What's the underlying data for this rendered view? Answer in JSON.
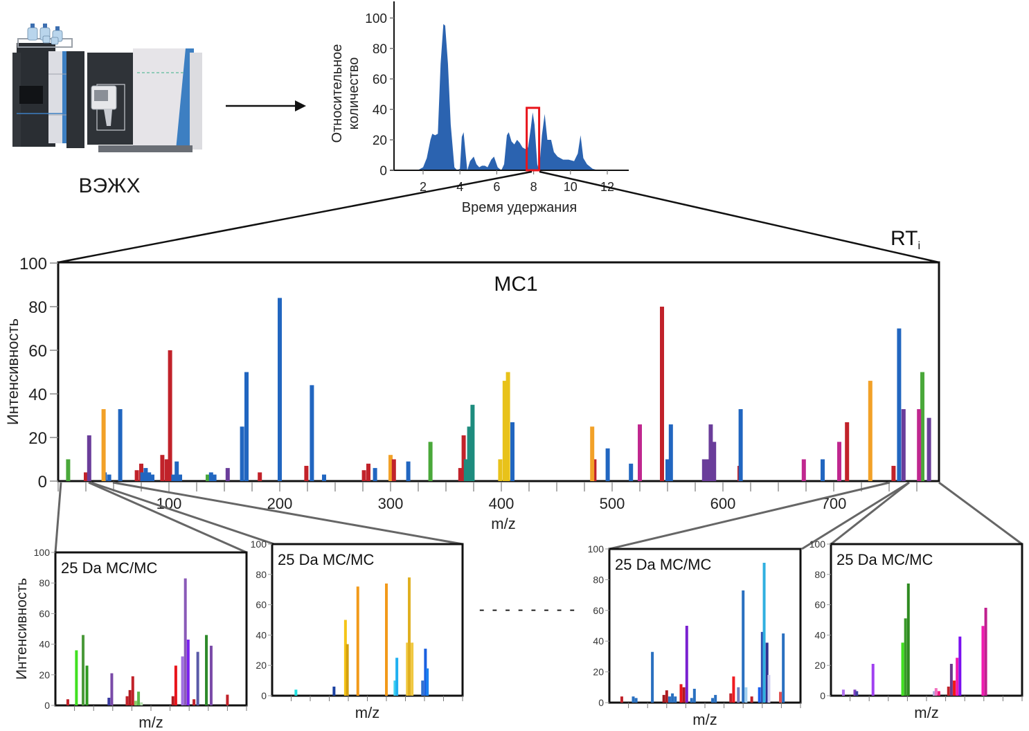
{
  "instrument": {
    "label": "ВЭЖХ",
    "icon": "lc-ms-instrument-icon"
  },
  "flow_arrow": "right-arrow-icon",
  "chart_data": [
    {
      "id": "chromatogram",
      "type": "area",
      "title": "",
      "xlabel": "Время удержания",
      "ylabel_lines": [
        "Относительное",
        "количество"
      ],
      "xlim": [
        0.3,
        13
      ],
      "ylim": [
        0,
        105
      ],
      "xticks": [
        2,
        4,
        6,
        8,
        10,
        12
      ],
      "yticks": [
        0,
        20,
        40,
        60,
        80,
        100
      ],
      "grid": false,
      "color": "#2b63b0",
      "highlight": {
        "x_range": [
          7.7,
          8.3
        ],
        "color": "#e8141b",
        "label_ref": "RTi"
      },
      "x": [
        1.7,
        2.0,
        2.2,
        2.4,
        2.5,
        2.65,
        2.8,
        2.95,
        3.1,
        3.2,
        3.35,
        3.5,
        3.7,
        3.85,
        4.0,
        4.1,
        4.2,
        4.3,
        4.4,
        4.55,
        4.75,
        4.9,
        5.05,
        5.2,
        5.35,
        5.5,
        5.7,
        5.85,
        6.05,
        6.25,
        6.4,
        6.55,
        6.65,
        6.8,
        6.95,
        7.1,
        7.25,
        7.4,
        7.55,
        7.7,
        7.85,
        7.95,
        8.05,
        8.2,
        8.3,
        8.45,
        8.6,
        8.75,
        8.95,
        9.1,
        9.3,
        9.6,
        9.9,
        10.2,
        10.4,
        10.55,
        10.7,
        10.9,
        11.2,
        11.5,
        12.9
      ],
      "y": [
        0,
        2,
        8,
        20,
        24,
        23,
        24,
        70,
        96,
        95,
        70,
        30,
        2,
        0,
        1,
        22,
        25,
        12,
        0,
        6,
        9,
        4,
        2,
        3,
        3,
        2,
        7,
        9,
        2,
        0,
        4,
        23,
        25,
        19,
        17,
        20,
        18,
        15,
        14,
        15,
        28,
        38,
        30,
        4,
        0,
        23,
        37,
        20,
        20,
        12,
        9,
        7,
        7,
        6,
        11,
        23,
        8,
        4,
        1,
        0,
        0
      ]
    },
    {
      "id": "ms1",
      "type": "bar",
      "title": "МС1",
      "corner_label": "RT",
      "corner_label_sub": "i",
      "xlabel": "m/z",
      "ylabel": "Интенсивность",
      "xlim": [
        0,
        795
      ],
      "ylim": [
        0,
        100
      ],
      "xticks_labeled": [
        100,
        200,
        300,
        400,
        500,
        600,
        700
      ],
      "xticks_minor_step": 25,
      "yticks": [
        0,
        20,
        40,
        60,
        80,
        100
      ],
      "grid": false,
      "series": [
        {
          "name": "green",
          "color": "#4aa83a",
          "x": [
            9,
            135,
            336,
            780
          ],
          "y": [
            10,
            3,
            18,
            50
          ]
        },
        {
          "name": "red",
          "color": "#c1222a",
          "x": [
            25,
            71,
            75,
            94,
            98,
            101,
            182,
            224,
            276,
            280,
            363,
            366,
            484,
            545,
            615,
            712,
            754
          ],
          "y": [
            4,
            5,
            8,
            12,
            10,
            60,
            4,
            7,
            5,
            8,
            6,
            21,
            10,
            80,
            7,
            27,
            7
          ]
        },
        {
          "name": "purple",
          "color": "#6a3d9a",
          "x": [
            28,
            153,
            583,
            586,
            589,
            592,
            763,
            786
          ],
          "y": [
            21,
            6,
            10,
            10,
            26,
            18,
            33,
            29
          ]
        },
        {
          "name": "blue",
          "color": "#2166c0",
          "x": [
            42,
            46,
            56,
            76,
            79,
            82,
            85,
            104,
            107,
            110,
            138,
            141,
            166,
            170,
            200,
            229,
            240,
            286,
            316,
            410,
            496,
            517,
            550,
            553,
            616,
            690,
            759
          ],
          "y": [
            4,
            3,
            33,
            4,
            6,
            4,
            3,
            3,
            9,
            3,
            4,
            3,
            25,
            50,
            84,
            44,
            3,
            6,
            9,
            27,
            15,
            8,
            10,
            26,
            33,
            10,
            70
          ]
        },
        {
          "name": "orange",
          "color": "#f2a128",
          "x": [
            41,
            300,
            482,
            733
          ],
          "y": [
            33,
            12,
            25,
            46
          ]
        },
        {
          "name": "teal",
          "color": "#1e8c7e",
          "x": [
            368,
            371,
            374
          ],
          "y": [
            10,
            25,
            35
          ]
        },
        {
          "name": "yellow",
          "color": "#e8c21a",
          "x": [
            399,
            403,
            406
          ],
          "y": [
            10,
            46,
            50
          ]
        },
        {
          "name": "red-2",
          "color": "#c1222a",
          "x": [
            303
          ],
          "y": [
            10
          ]
        },
        {
          "name": "magenta",
          "color": "#c0278f",
          "x": [
            525,
            673,
            705,
            777
          ],
          "y": [
            26,
            10,
            18,
            33
          ]
        }
      ]
    },
    {
      "id": "msms-1",
      "type": "bar",
      "title": "25 Da  МС/МС",
      "xlabel": "m/z",
      "ylabel": "Интенсивность",
      "ylim": [
        0,
        100
      ],
      "yticks": [
        0,
        20,
        40,
        60,
        80,
        100
      ],
      "xlim": [
        0,
        100
      ],
      "x_tick_count": 10,
      "peaks": [
        {
          "x": 6.5,
          "y": 4,
          "color": "#c1222a"
        },
        {
          "x": 11,
          "y": 36,
          "color": "#40e020"
        },
        {
          "x": 14.5,
          "y": 46,
          "color": "#4a9a3a"
        },
        {
          "x": 16.5,
          "y": 26,
          "color": "#2e9a20"
        },
        {
          "x": 28,
          "y": 5,
          "color": "#3a3aa0"
        },
        {
          "x": 29.5,
          "y": 21,
          "color": "#7a4aa8"
        },
        {
          "x": 37.5,
          "y": 6,
          "color": "#c1222a"
        },
        {
          "x": 39,
          "y": 10,
          "color": "#b01a20"
        },
        {
          "x": 40.5,
          "y": 19,
          "color": "#c1222a"
        },
        {
          "x": 42,
          "y": 3,
          "color": "#88cc66"
        },
        {
          "x": 43.5,
          "y": 9,
          "color": "#5cb84a"
        },
        {
          "x": 45,
          "y": 2,
          "color": "#b8e0b0"
        },
        {
          "x": 61.5,
          "y": 6,
          "color": "#b01a20"
        },
        {
          "x": 63,
          "y": 26,
          "color": "#e8141b"
        },
        {
          "x": 66.5,
          "y": 32,
          "color": "#a070e0"
        },
        {
          "x": 68,
          "y": 83,
          "color": "#8a5ab8"
        },
        {
          "x": 69.5,
          "y": 43,
          "color": "#7a20f0"
        },
        {
          "x": 72.5,
          "y": 4,
          "color": "#c1222a"
        },
        {
          "x": 74.5,
          "y": 35,
          "color": "#5a5aa8"
        },
        {
          "x": 79,
          "y": 46,
          "color": "#2e8a2a"
        },
        {
          "x": 81.5,
          "y": 39,
          "color": "#7a4aa8"
        },
        {
          "x": 90,
          "y": 7,
          "color": "#c1222a"
        }
      ]
    },
    {
      "id": "msms-2",
      "type": "bar",
      "title": "25 Da  МС/МС",
      "xlabel": "m/z",
      "ylabel": "",
      "ylim": [
        0,
        100
      ],
      "yticks": [
        0,
        20,
        40,
        60,
        80,
        100
      ],
      "xlim": [
        0,
        100
      ],
      "x_tick_count": 10,
      "peaks": [
        {
          "x": 12.5,
          "y": 4,
          "color": "#20e0e0"
        },
        {
          "x": 32.5,
          "y": 6,
          "color": "#1a40a0"
        },
        {
          "x": 38.5,
          "y": 50,
          "color": "#f5c518"
        },
        {
          "x": 39.5,
          "y": 34,
          "color": "#d4a010"
        },
        {
          "x": 45,
          "y": 72,
          "color": "#f29a1a"
        },
        {
          "x": 60,
          "y": 74,
          "color": "#f29a1a"
        },
        {
          "x": 64.5,
          "y": 10,
          "color": "#40d0f0"
        },
        {
          "x": 65.5,
          "y": 25,
          "color": "#20b0f0"
        },
        {
          "x": 71,
          "y": 35,
          "color": "#f0c840"
        },
        {
          "x": 72,
          "y": 78,
          "color": "#e0b020"
        },
        {
          "x": 73.5,
          "y": 35,
          "color": "#f0c840"
        },
        {
          "x": 79,
          "y": 10,
          "color": "#3070d0"
        },
        {
          "x": 80.5,
          "y": 31,
          "color": "#1a60e0"
        },
        {
          "x": 81.5,
          "y": 18,
          "color": "#1a80f0"
        }
      ]
    },
    {
      "id": "msms-3",
      "type": "bar",
      "title": "25 Da  МС/МС",
      "xlabel": "m/z",
      "ylabel": "",
      "ylim": [
        0,
        100
      ],
      "yticks": [
        0,
        20,
        40,
        60,
        80,
        100
      ],
      "xlim": [
        0,
        100
      ],
      "x_tick_count": 10,
      "peaks": [
        {
          "x": 6.5,
          "y": 4,
          "color": "#c1222a"
        },
        {
          "x": 12.5,
          "y": 4,
          "color": "#2a70c0"
        },
        {
          "x": 14,
          "y": 3,
          "color": "#2a70c0"
        },
        {
          "x": 22.5,
          "y": 33,
          "color": "#2a70c0"
        },
        {
          "x": 28.5,
          "y": 5,
          "color": "#a01a20"
        },
        {
          "x": 30,
          "y": 8,
          "color": "#b01a20"
        },
        {
          "x": 31.5,
          "y": 4,
          "color": "#2a70c0"
        },
        {
          "x": 33,
          "y": 6,
          "color": "#2a70c0"
        },
        {
          "x": 34.5,
          "y": 4,
          "color": "#2a70c0"
        },
        {
          "x": 37.5,
          "y": 12,
          "color": "#e8141b"
        },
        {
          "x": 39,
          "y": 10,
          "color": "#b01a20"
        },
        {
          "x": 40.5,
          "y": 50,
          "color": "#7a20d0"
        },
        {
          "x": 43,
          "y": 3,
          "color": "#2a70c0"
        },
        {
          "x": 44.5,
          "y": 9,
          "color": "#2a70c0"
        },
        {
          "x": 54,
          "y": 3,
          "color": "#2a70c0"
        },
        {
          "x": 55.5,
          "y": 5,
          "color": "#2a70c0"
        },
        {
          "x": 63.5,
          "y": 6,
          "color": "#c1222a"
        },
        {
          "x": 65,
          "y": 17,
          "color": "#f01a20"
        },
        {
          "x": 67.5,
          "y": 10,
          "color": "#7080c0"
        },
        {
          "x": 70,
          "y": 73,
          "color": "#2a70c0"
        },
        {
          "x": 71.5,
          "y": 10,
          "color": "#a0d0f0"
        },
        {
          "x": 74.5,
          "y": 4,
          "color": "#c1222a"
        },
        {
          "x": 78.5,
          "y": 10,
          "color": "#1a60f0"
        },
        {
          "x": 80,
          "y": 46,
          "color": "#3050b0"
        },
        {
          "x": 81,
          "y": 91,
          "color": "#30b0e0"
        },
        {
          "x": 82.5,
          "y": 39,
          "color": "#303090"
        },
        {
          "x": 83.5,
          "y": 18,
          "color": "#d0d0f0"
        },
        {
          "x": 89.5,
          "y": 7,
          "color": "#e05050"
        },
        {
          "x": 91,
          "y": 45,
          "color": "#2a70c0"
        }
      ]
    },
    {
      "id": "msms-4",
      "type": "bar",
      "title": "25 Da   МС/МС",
      "xlabel": "m/z",
      "ylabel": "",
      "ylim": [
        0,
        100
      ],
      "yticks": [
        0,
        20,
        40,
        60,
        80,
        100
      ],
      "xlim": [
        0,
        100
      ],
      "x_tick_count": 10,
      "peaks": [
        {
          "x": 6.5,
          "y": 4,
          "color": "#b070f0"
        },
        {
          "x": 12.5,
          "y": 4,
          "color": "#8040c0"
        },
        {
          "x": 13.5,
          "y": 3,
          "color": "#4040a0"
        },
        {
          "x": 22,
          "y": 21,
          "color": "#a040f0"
        },
        {
          "x": 37.5,
          "y": 35,
          "color": "#40e020"
        },
        {
          "x": 39,
          "y": 51,
          "color": "#3a9a2a"
        },
        {
          "x": 40.5,
          "y": 74,
          "color": "#2e8a20"
        },
        {
          "x": 54,
          "y": 3,
          "color": "#b0b0e0"
        },
        {
          "x": 55,
          "y": 5,
          "color": "#f070c0"
        },
        {
          "x": 56.5,
          "y": 3,
          "color": "#f01a80"
        },
        {
          "x": 61.5,
          "y": 6,
          "color": "#c1222a"
        },
        {
          "x": 63,
          "y": 21,
          "color": "#6a3a8a"
        },
        {
          "x": 64.5,
          "y": 10,
          "color": "#f01a1a"
        },
        {
          "x": 66,
          "y": 25,
          "color": "#f01ab0"
        },
        {
          "x": 67.5,
          "y": 39,
          "color": "#7a10f0"
        },
        {
          "x": 79.5,
          "y": 46,
          "color": "#f01ab0"
        },
        {
          "x": 81,
          "y": 58,
          "color": "#c0208f"
        }
      ]
    }
  ],
  "ellipsis": "- - - - - - - -"
}
